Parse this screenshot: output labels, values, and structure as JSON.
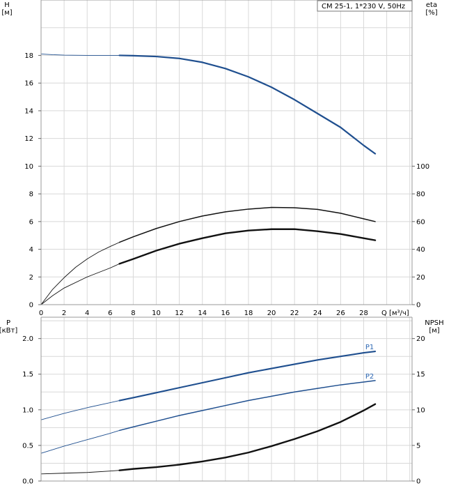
{
  "chart_data": {
    "type": "line",
    "title": "CM 25-1, 1*230 V, 50Hz",
    "colors": {
      "blue": "#1f4f8f",
      "blue_label": "#2c67b3",
      "black": "#111111",
      "grid": "#d8d8d8",
      "frame": "#999999"
    },
    "x": {
      "label": "Q [м³/ч]",
      "ticks": [
        0,
        2,
        4,
        6,
        8,
        10,
        12,
        14,
        16,
        18,
        20,
        22,
        24,
        26,
        28
      ],
      "ticklabels": [
        "0",
        "2",
        "4",
        "6",
        "8",
        "10",
        "12",
        "14",
        "16",
        "18",
        "20",
        "22",
        "24",
        "26",
        "28"
      ],
      "range": [
        0,
        32.2
      ]
    },
    "top_axes": {
      "left_label": "H\n[м]",
      "left_ticks": [
        0,
        2,
        4,
        6,
        8,
        10,
        12,
        14,
        16,
        18
      ],
      "left_ticklabels": [
        "0",
        "2",
        "4",
        "6",
        "8",
        "10",
        "12",
        "14",
        "16",
        "18"
      ],
      "left_range": [
        0,
        22
      ],
      "right_label": "eta\n[%]",
      "right_ticks": [
        0,
        20,
        40,
        60,
        80,
        100
      ],
      "right_ticklabels": [
        "0",
        "20",
        "40",
        "60",
        "80",
        "100"
      ],
      "right_range": [
        0,
        220
      ]
    },
    "bottom_axes": {
      "left_label": "P\n[кВт]",
      "left_ticks": [
        0,
        0.5,
        1.0,
        1.5,
        2.0
      ],
      "left_ticklabels": [
        "0.0",
        "0.5",
        "1.0",
        "1.5",
        "2.0"
      ],
      "left_range": [
        0,
        2.3
      ],
      "right_label": "NPSH\n[м]",
      "right_ticks": [
        0,
        5,
        10,
        15,
        20
      ],
      "right_ticklabels": [
        "0",
        "5",
        "10",
        "15",
        "20"
      ],
      "right_range": [
        0,
        23
      ]
    },
    "series": [
      {
        "name": "H",
        "axes": "top",
        "axis": "left",
        "color": "blue",
        "points": [
          [
            0,
            18.1
          ],
          [
            1,
            18.05
          ],
          [
            2,
            18.02
          ],
          [
            4,
            18.0
          ],
          [
            6,
            18.0
          ],
          [
            6.8,
            18.0
          ],
          [
            8,
            17.98
          ],
          [
            10,
            17.92
          ],
          [
            12,
            17.78
          ],
          [
            14,
            17.5
          ],
          [
            16,
            17.05
          ],
          [
            18,
            16.45
          ],
          [
            20,
            15.7
          ],
          [
            22,
            14.8
          ],
          [
            24,
            13.8
          ],
          [
            26,
            12.8
          ],
          [
            28,
            11.5
          ],
          [
            29,
            10.9
          ]
        ],
        "duty_range": [
          6.8,
          29
        ]
      },
      {
        "name": "eta",
        "axes": "top",
        "axis": "right",
        "color": "black",
        "points": [
          [
            0,
            0
          ],
          [
            1,
            11
          ],
          [
            2,
            19.5
          ],
          [
            3,
            27
          ],
          [
            4,
            33
          ],
          [
            5,
            38
          ],
          [
            6,
            42
          ],
          [
            6.8,
            45
          ],
          [
            8,
            49
          ],
          [
            10,
            55
          ],
          [
            12,
            60
          ],
          [
            14,
            64
          ],
          [
            16,
            67
          ],
          [
            18,
            69
          ],
          [
            20,
            70.2
          ],
          [
            22,
            70
          ],
          [
            24,
            68.8
          ],
          [
            26,
            66
          ],
          [
            28,
            62
          ],
          [
            29,
            60
          ]
        ],
        "duty_range": [
          6.8,
          29
        ]
      },
      {
        "name": "eta_p",
        "axes": "top",
        "axis": "right",
        "color": "black",
        "points": [
          [
            0,
            0
          ],
          [
            1,
            6.5
          ],
          [
            2,
            12
          ],
          [
            4,
            20
          ],
          [
            6,
            26.5
          ],
          [
            6.8,
            29.5
          ],
          [
            8,
            33
          ],
          [
            10,
            39
          ],
          [
            12,
            44
          ],
          [
            14,
            48
          ],
          [
            16,
            51.5
          ],
          [
            18,
            53.5
          ],
          [
            20,
            54.5
          ],
          [
            22,
            54.5
          ],
          [
            24,
            53
          ],
          [
            26,
            51
          ],
          [
            28,
            48
          ],
          [
            29,
            46.5
          ]
        ],
        "duty_range": [
          6.8,
          29
        ]
      },
      {
        "name": "P1",
        "axes": "bottom",
        "axis": "left",
        "color": "blue",
        "points": [
          [
            0,
            0.86
          ],
          [
            2,
            0.95
          ],
          [
            4,
            1.03
          ],
          [
            6,
            1.1
          ],
          [
            6.8,
            1.13
          ],
          [
            8,
            1.17
          ],
          [
            10,
            1.24
          ],
          [
            12,
            1.31
          ],
          [
            14,
            1.38
          ],
          [
            16,
            1.45
          ],
          [
            18,
            1.52
          ],
          [
            20,
            1.58
          ],
          [
            22,
            1.64
          ],
          [
            24,
            1.7
          ],
          [
            26,
            1.75
          ],
          [
            28,
            1.8
          ],
          [
            29,
            1.82
          ]
        ],
        "duty_range": [
          6.8,
          29
        ]
      },
      {
        "name": "P2",
        "axes": "bottom",
        "axis": "left",
        "color": "blue",
        "points": [
          [
            0,
            0.39
          ],
          [
            2,
            0.49
          ],
          [
            4,
            0.58
          ],
          [
            6,
            0.67
          ],
          [
            6.8,
            0.71
          ],
          [
            8,
            0.76
          ],
          [
            10,
            0.84
          ],
          [
            12,
            0.92
          ],
          [
            14,
            0.99
          ],
          [
            16,
            1.06
          ],
          [
            18,
            1.13
          ],
          [
            20,
            1.19
          ],
          [
            22,
            1.25
          ],
          [
            24,
            1.3
          ],
          [
            26,
            1.35
          ],
          [
            28,
            1.39
          ],
          [
            29,
            1.41
          ]
        ],
        "duty_range": [
          6.8,
          29
        ]
      },
      {
        "name": "NPSH",
        "axes": "bottom",
        "axis": "right",
        "color": "black",
        "points": [
          [
            0,
            1.0
          ],
          [
            2,
            1.1
          ],
          [
            4,
            1.2
          ],
          [
            6,
            1.4
          ],
          [
            6.8,
            1.5
          ],
          [
            8,
            1.7
          ],
          [
            10,
            1.95
          ],
          [
            12,
            2.3
          ],
          [
            14,
            2.75
          ],
          [
            16,
            3.3
          ],
          [
            18,
            4.0
          ],
          [
            20,
            4.9
          ],
          [
            22,
            5.9
          ],
          [
            24,
            7.0
          ],
          [
            26,
            8.3
          ],
          [
            28,
            9.9
          ],
          [
            29,
            10.8
          ]
        ],
        "duty_range": [
          6.8,
          29
        ]
      }
    ],
    "series_labels": [
      {
        "text": "P1",
        "series": "P1"
      },
      {
        "text": "P2",
        "series": "P2"
      }
    ]
  }
}
